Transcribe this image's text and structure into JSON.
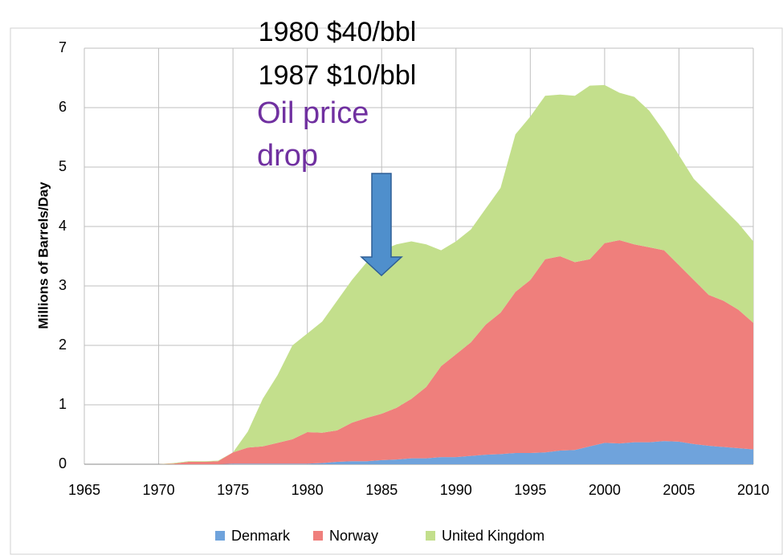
{
  "chart_data": {
    "type": "stacked_area",
    "annotations": [
      "1980 $40/bbl",
      "1987 $10/bbl"
    ],
    "callout": [
      "Oil price",
      "drop"
    ],
    "ylabel": "Millions of Barrels/Day",
    "x": [
      1970,
      1971,
      1972,
      1973,
      1974,
      1975,
      1976,
      1977,
      1978,
      1979,
      1980,
      1981,
      1982,
      1983,
      1984,
      1985,
      1986,
      1987,
      1988,
      1989,
      1990,
      1991,
      1992,
      1993,
      1994,
      1995,
      1996,
      1997,
      1998,
      1999,
      2000,
      2001,
      2002,
      2003,
      2004,
      2005,
      2006,
      2007,
      2008,
      2009,
      2010
    ],
    "series": [
      {
        "name": "Denmark",
        "color": "#6fa3dc",
        "values": [
          0,
          0,
          0,
          0,
          0,
          0.01,
          0.01,
          0.01,
          0.01,
          0.01,
          0.01,
          0.02,
          0.04,
          0.05,
          0.05,
          0.07,
          0.08,
          0.1,
          0.1,
          0.12,
          0.12,
          0.14,
          0.16,
          0.17,
          0.19,
          0.19,
          0.2,
          0.23,
          0.24,
          0.3,
          0.36,
          0.35,
          0.37,
          0.37,
          0.39,
          0.38,
          0.34,
          0.31,
          0.29,
          0.27,
          0.25
        ]
      },
      {
        "name": "Norway",
        "color": "#ef7f7c",
        "values": [
          0,
          0.01,
          0.04,
          0.04,
          0.05,
          0.19,
          0.27,
          0.29,
          0.35,
          0.41,
          0.53,
          0.51,
          0.53,
          0.65,
          0.73,
          0.78,
          0.87,
          1.0,
          1.2,
          1.53,
          1.73,
          1.91,
          2.19,
          2.38,
          2.71,
          2.91,
          3.25,
          3.27,
          3.16,
          3.15,
          3.36,
          3.42,
          3.33,
          3.28,
          3.21,
          2.97,
          2.76,
          2.54,
          2.46,
          2.33,
          2.13
        ]
      },
      {
        "name": "United Kingdom",
        "color": "#c3df8c",
        "values": [
          0,
          0.01,
          0.01,
          0.01,
          0.01,
          0,
          0.27,
          0.8,
          1.14,
          1.58,
          1.66,
          1.87,
          2.18,
          2.4,
          2.62,
          2.75,
          2.75,
          2.65,
          2.4,
          1.95,
          1.9,
          1.9,
          1.95,
          2.1,
          2.65,
          2.75,
          2.75,
          2.72,
          2.8,
          2.92,
          2.66,
          2.48,
          2.48,
          2.3,
          2.0,
          1.85,
          1.7,
          1.7,
          1.55,
          1.45,
          1.37
        ]
      }
    ],
    "xlim": [
      1965,
      2010
    ],
    "xticks": [
      1965,
      1970,
      1975,
      1980,
      1985,
      1990,
      1995,
      2000,
      2005,
      2010
    ],
    "ylim": [
      0,
      7
    ],
    "yticks": [
      0,
      1,
      2,
      3,
      4,
      5,
      6,
      7
    ],
    "grid": true,
    "legend": "bottom"
  }
}
